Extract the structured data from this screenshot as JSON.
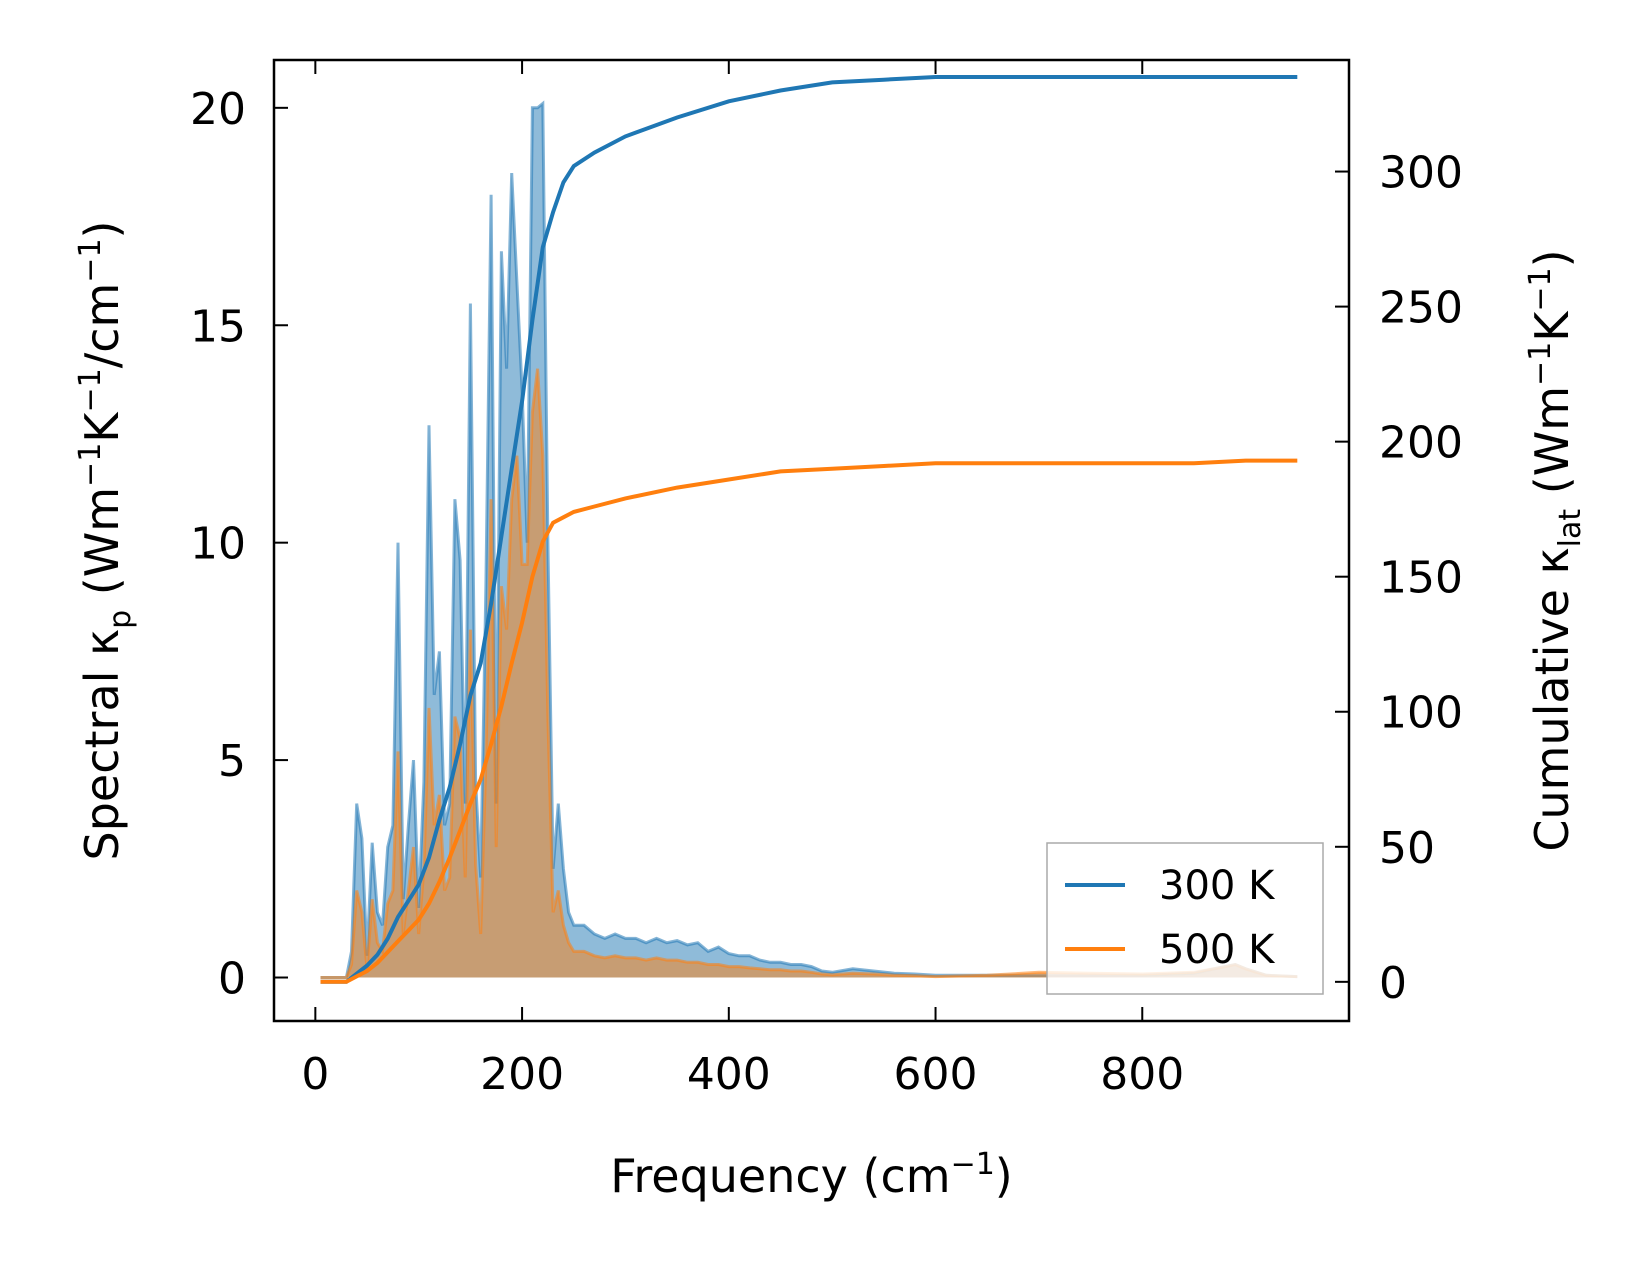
{
  "chart_data": {
    "type": "line",
    "xlabel": "Frequency (cm⁻¹)",
    "ylabel_left": "Spectral κₚ (Wm⁻¹K⁻¹/cm⁻¹)",
    "ylabel_right": "Cumulative κₗₐₜ (Wm⁻¹K⁻¹)",
    "xlim": [
      -40,
      1000
    ],
    "ylim_left": [
      -1,
      21.1
    ],
    "ylim_right": [
      -14.5,
      341.3
    ],
    "xticks": [
      0,
      200,
      400,
      600,
      800
    ],
    "yticks_left": [
      0,
      5,
      10,
      15,
      20
    ],
    "yticks_right": [
      0,
      50,
      100,
      150,
      200,
      250,
      300
    ],
    "legend": {
      "position": "bottom-right",
      "entries": [
        "300 K",
        "500 K"
      ]
    },
    "colors": {
      "s300": "#1f77b4",
      "s500": "#ff7f0e"
    },
    "grid": false,
    "spectral": [
      {
        "name": "300 K",
        "axis": "left",
        "x": [
          5,
          30,
          35,
          40,
          45,
          50,
          55,
          60,
          65,
          70,
          75,
          80,
          85,
          90,
          95,
          100,
          105,
          110,
          115,
          120,
          125,
          130,
          135,
          140,
          145,
          150,
          155,
          160,
          165,
          170,
          175,
          180,
          185,
          190,
          195,
          200,
          205,
          210,
          215,
          220,
          225,
          230,
          235,
          240,
          245,
          250,
          260,
          270,
          280,
          290,
          300,
          310,
          320,
          330,
          340,
          350,
          360,
          370,
          380,
          390,
          400,
          410,
          420,
          430,
          440,
          450,
          460,
          470,
          480,
          490,
          500,
          520,
          540,
          560,
          580,
          600,
          650,
          700,
          750,
          800,
          850,
          880,
          890,
          900,
          920,
          950
        ],
        "y": [
          0,
          0,
          0.6,
          4.0,
          3.2,
          0.5,
          3.1,
          1.5,
          1.2,
          3.0,
          3.5,
          10.0,
          1.8,
          3.5,
          5.0,
          1.6,
          4.5,
          12.7,
          6.5,
          7.5,
          3.5,
          4.0,
          11.0,
          9.6,
          4.0,
          15.5,
          4.5,
          2.3,
          9.0,
          18.0,
          4.0,
          16.7,
          14.0,
          18.5,
          16.0,
          13.5,
          10.0,
          20.0,
          20.0,
          20.1,
          10.0,
          2.5,
          4.0,
          2.5,
          1.5,
          1.2,
          1.2,
          1.0,
          0.9,
          1.0,
          0.9,
          0.9,
          0.8,
          0.9,
          0.8,
          0.85,
          0.75,
          0.8,
          0.6,
          0.7,
          0.55,
          0.5,
          0.5,
          0.4,
          0.35,
          0.35,
          0.3,
          0.3,
          0.25,
          0.15,
          0.12,
          0.2,
          0.15,
          0.1,
          0.08,
          0.05,
          0.05,
          0.05,
          0.05,
          0.05,
          0.1,
          0.25,
          0.3,
          0.2,
          0.05,
          0.02
        ]
      },
      {
        "name": "500 K",
        "axis": "left",
        "x": [
          5,
          30,
          35,
          40,
          45,
          50,
          55,
          60,
          65,
          70,
          75,
          80,
          85,
          90,
          95,
          100,
          105,
          110,
          115,
          120,
          125,
          130,
          135,
          140,
          145,
          150,
          155,
          160,
          165,
          170,
          175,
          180,
          185,
          190,
          195,
          200,
          205,
          210,
          215,
          220,
          225,
          230,
          235,
          240,
          245,
          250,
          260,
          270,
          280,
          290,
          300,
          310,
          320,
          330,
          340,
          350,
          360,
          370,
          380,
          390,
          400,
          410,
          420,
          430,
          440,
          450,
          460,
          470,
          480,
          490,
          500,
          520,
          540,
          560,
          580,
          600,
          650,
          700,
          750,
          800,
          850,
          880,
          890,
          900,
          920,
          950
        ],
        "y": [
          0,
          0,
          0.3,
          2.0,
          1.5,
          0.2,
          1.8,
          0.8,
          0.6,
          1.7,
          2.0,
          5.2,
          1.0,
          2.0,
          3.0,
          1.0,
          2.5,
          6.2,
          3.5,
          4.2,
          2.0,
          2.3,
          6.0,
          5.5,
          2.3,
          8.0,
          2.6,
          1.0,
          5.0,
          11.0,
          3.0,
          9.0,
          8.0,
          11.0,
          12.0,
          9.5,
          9.5,
          13.0,
          14.0,
          12.0,
          6.0,
          1.5,
          2.0,
          1.2,
          0.8,
          0.6,
          0.6,
          0.5,
          0.45,
          0.5,
          0.45,
          0.45,
          0.4,
          0.45,
          0.4,
          0.4,
          0.35,
          0.35,
          0.3,
          0.3,
          0.25,
          0.25,
          0.22,
          0.2,
          0.18,
          0.18,
          0.15,
          0.15,
          0.12,
          0.08,
          0.06,
          0.1,
          0.08,
          0.05,
          0.04,
          0.02,
          0.05,
          0.12,
          0.1,
          0.08,
          0.12,
          0.25,
          0.3,
          0.2,
          0.05,
          0.02
        ]
      }
    ],
    "cumulative": [
      {
        "name": "300 K",
        "axis": "right",
        "x": [
          5,
          30,
          40,
          50,
          60,
          70,
          80,
          90,
          100,
          110,
          120,
          130,
          140,
          150,
          160,
          170,
          180,
          190,
          200,
          210,
          220,
          230,
          240,
          250,
          270,
          300,
          350,
          400,
          450,
          500,
          550,
          600,
          700,
          800,
          850,
          900,
          950
        ],
        "y": [
          0,
          0,
          3,
          6,
          10,
          16,
          24,
          30,
          36,
          46,
          60,
          72,
          88,
          106,
          118,
          140,
          165,
          190,
          215,
          245,
          272,
          285,
          296,
          302,
          307,
          313,
          320,
          326,
          330,
          333,
          334,
          335,
          335,
          335,
          335,
          335,
          335
        ]
      },
      {
        "name": "500 K",
        "axis": "right",
        "x": [
          5,
          30,
          40,
          50,
          60,
          70,
          80,
          90,
          100,
          110,
          120,
          130,
          140,
          150,
          160,
          170,
          180,
          190,
          200,
          210,
          220,
          230,
          240,
          250,
          270,
          300,
          350,
          400,
          450,
          500,
          550,
          600,
          700,
          800,
          850,
          900,
          950
        ],
        "y": [
          0,
          0,
          2,
          4,
          7,
          11,
          15,
          19,
          23,
          29,
          37,
          46,
          56,
          66,
          75,
          88,
          102,
          118,
          133,
          150,
          163,
          170,
          172,
          174,
          176,
          179,
          183,
          186,
          189,
          190,
          191,
          192,
          192,
          192,
          192,
          193,
          193
        ]
      }
    ]
  }
}
